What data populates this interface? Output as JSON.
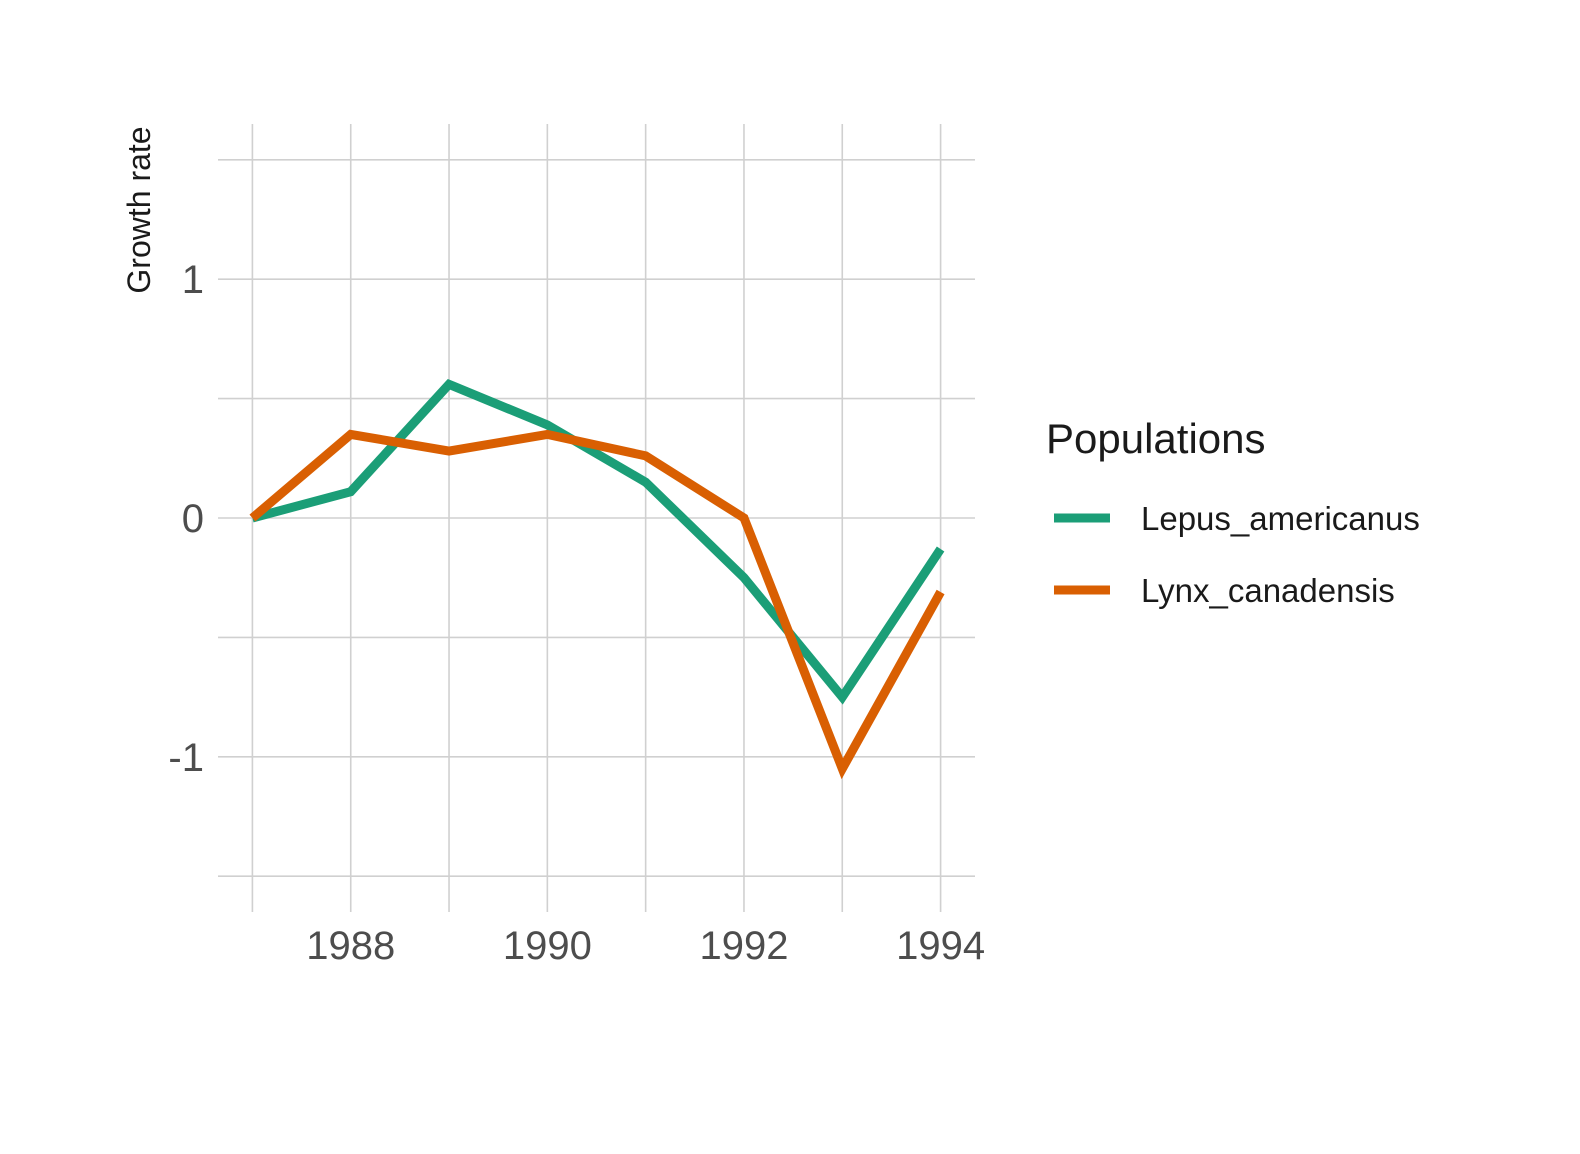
{
  "chart_data": {
    "type": "line",
    "title": "",
    "xlabel": "",
    "ylabel": "Growth rate",
    "xlim": [
      1986.65,
      1994.35
    ],
    "ylim": [
      -1.65,
      1.65
    ],
    "x": [
      1987,
      1988,
      1989,
      1990,
      1991,
      1992,
      1993,
      1994
    ],
    "x_ticks": [
      1988,
      1990,
      1992,
      1994
    ],
    "x_tick_labels": [
      "1988",
      "1990",
      "1992",
      "1994"
    ],
    "x_minor_ticks": [
      1987,
      1989,
      1991,
      1993
    ],
    "y_ticks": [
      -1,
      0,
      1
    ],
    "y_tick_labels": [
      "-1",
      "0",
      "1"
    ],
    "y_minor_ticks": [
      -1.5,
      -0.5,
      0.5,
      1.5
    ],
    "grid": true,
    "legend": {
      "title": "Populations",
      "position": "right"
    },
    "series": [
      {
        "name": "Lepus_americanus",
        "color": "#1b9e77",
        "values": [
          0.0,
          0.11,
          0.56,
          0.39,
          0.15,
          -0.25,
          -0.75,
          -0.13
        ]
      },
      {
        "name": "Lynx_canadensis",
        "color": "#d95f02",
        "values": [
          0.0,
          0.35,
          0.28,
          0.35,
          0.26,
          0.0,
          -1.05,
          -0.31
        ]
      }
    ]
  }
}
